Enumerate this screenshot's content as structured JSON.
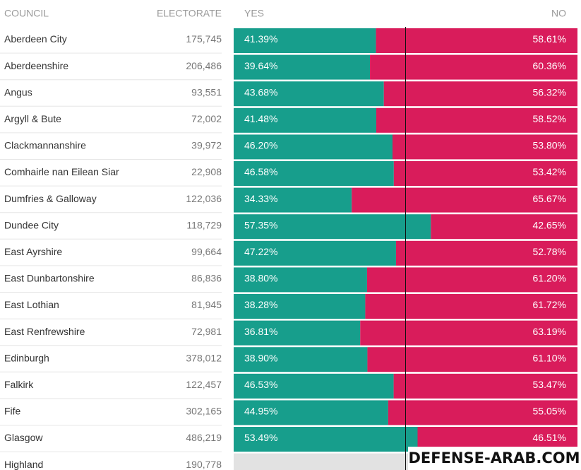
{
  "chart_data": {
    "type": "stacked-bar",
    "headers": [
      "COUNCIL",
      "ELECTORATE",
      "YES",
      "NO"
    ],
    "categories": [
      "Aberdeen City",
      "Aberdeenshire",
      "Angus",
      "Argyll & Bute",
      "Clackmannanshire",
      "Comhairle nan Eilean Siar",
      "Dumfries & Galloway",
      "Dundee City",
      "East Ayrshire",
      "East Dunbartonshire",
      "East Lothian",
      "East Renfrewshire",
      "Edinburgh",
      "Falkirk",
      "Fife",
      "Glasgow",
      "Highland"
    ],
    "electorate": [
      "175,745",
      "206,486",
      "93,551",
      "72,002",
      "39,972",
      "22,908",
      "122,036",
      "118,729",
      "99,664",
      "86,836",
      "81,945",
      "72,981",
      "378,012",
      "122,457",
      "302,165",
      "486,219",
      "190,778"
    ],
    "xlim": [
      0,
      100
    ],
    "no_result_color": "#e2e2e2",
    "series": [
      {
        "name": "YES",
        "color": "#179e8c",
        "values": [
          41.39,
          39.64,
          43.68,
          41.48,
          46.2,
          46.58,
          34.33,
          57.35,
          47.22,
          38.8,
          38.28,
          36.81,
          38.9,
          46.53,
          44.95,
          53.49,
          null
        ],
        "value_labels": [
          "41.39%",
          "39.64%",
          "43.68%",
          "41.48%",
          "46.20%",
          "46.58%",
          "34.33%",
          "57.35%",
          "47.22%",
          "38.80%",
          "38.28%",
          "36.81%",
          "38.90%",
          "46.53%",
          "44.95%",
          "53.49%",
          null
        ]
      },
      {
        "name": "NO",
        "color": "#d91c5b",
        "values": [
          58.61,
          60.36,
          56.32,
          58.52,
          53.8,
          53.42,
          65.67,
          42.65,
          52.78,
          61.2,
          61.72,
          63.19,
          61.1,
          53.47,
          55.05,
          46.51,
          null
        ],
        "value_labels": [
          "58.61%",
          "60.36%",
          "56.32%",
          "58.52%",
          "53.80%",
          "53.42%",
          "65.67%",
          "42.65%",
          "52.78%",
          "61.20%",
          "61.72%",
          "63.19%",
          "61.10%",
          "53.47%",
          "55.05%",
          "46.51%",
          null
        ]
      }
    ],
    "watermark": "DEFENSE-ARAB.COM"
  }
}
